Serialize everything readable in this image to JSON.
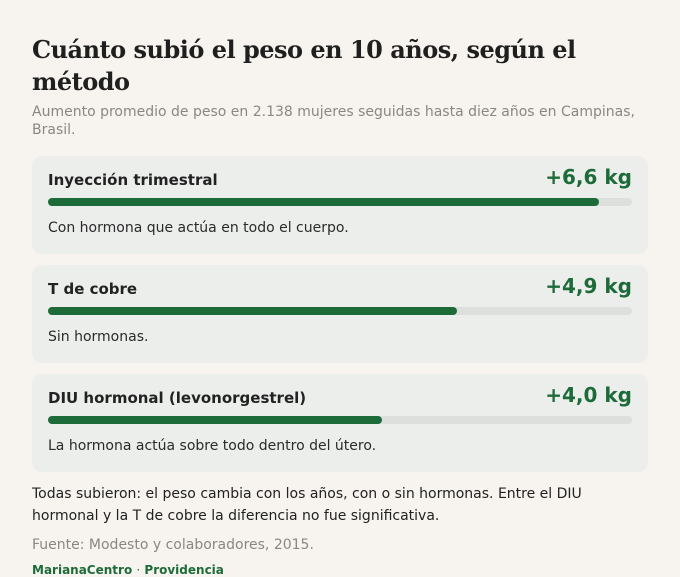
{
  "title": "Cuánto subió el peso en 10 años, según el método",
  "subtitle": "Aumento promedio de peso en 2.138 mujeres seguidas hasta diez años en Campinas, Brasil.",
  "chart_data": {
    "type": "bar",
    "orientation": "horizontal",
    "title": "Cuánto subió el peso en 10 años, según el método",
    "xlim": [
      0,
      7
    ],
    "categories": [
      "Inyección trimestral",
      "T de cobre",
      "DIU hormonal (levonorgestrel)"
    ],
    "values": [
      6.6,
      4.9,
      4.0
    ],
    "value_labels": [
      "+6,6 kg",
      "+4,9 kg",
      "+4,0 kg"
    ],
    "notes": [
      "Con hormona que actúa en todo el cuerpo.",
      "Sin hormonas.",
      "La hormona actúa sobre todo dentro del útero."
    ],
    "bar_color": "#1e6b3a",
    "track_color": "#dcdfdc"
  },
  "summary": "Todas subieron: el peso cambia con los años, con o sin hormonas. Entre el DIU hormonal y la T de cobre la diferencia no fue significativa.",
  "source": "Fuente: Modesto y colaboradores, 2015.",
  "footer": {
    "brand": "MarianaCentro",
    "separator": "·",
    "location": "Providencia"
  }
}
